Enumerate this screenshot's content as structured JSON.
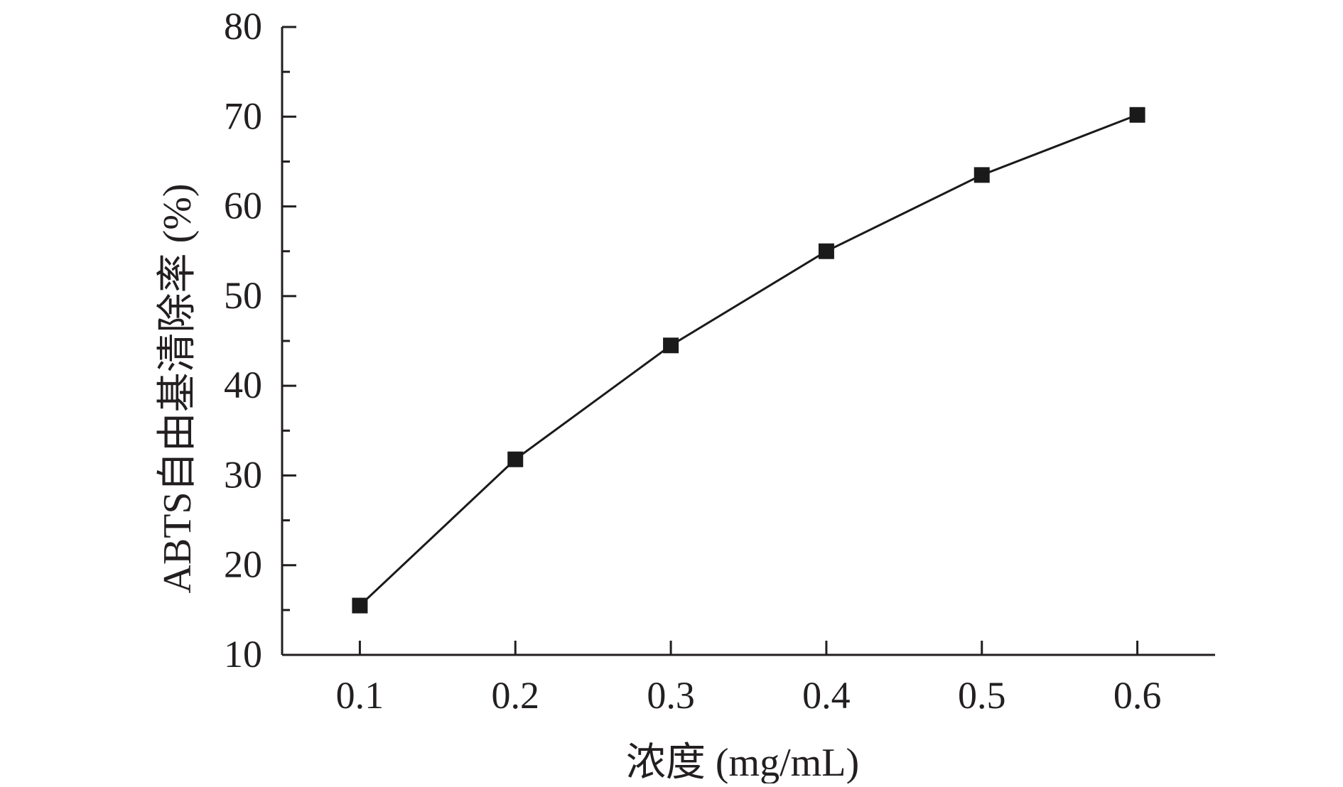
{
  "chart_data": {
    "type": "line",
    "title": "",
    "xlabel": "浓度 (mg/mL)",
    "ylabel": "ABTS自由基清除率 (%)",
    "x": [
      0.1,
      0.2,
      0.3,
      0.4,
      0.5,
      0.6
    ],
    "x_tick_labels": [
      "0.1",
      "0.2",
      "0.3",
      "0.4",
      "0.5",
      "0.6"
    ],
    "y_tick_labels": [
      "10",
      "20",
      "30",
      "40",
      "50",
      "60",
      "70",
      "80"
    ],
    "series": [
      {
        "values": [
          15.5,
          31.8,
          44.5,
          55.0,
          63.5,
          70.2
        ],
        "marker": "square",
        "color": "#1a1a1a"
      }
    ],
    "xlim": [
      0.05,
      0.65
    ],
    "ylim": [
      10,
      80
    ],
    "y_minor_step": 5,
    "grid": false,
    "legend": "none"
  }
}
